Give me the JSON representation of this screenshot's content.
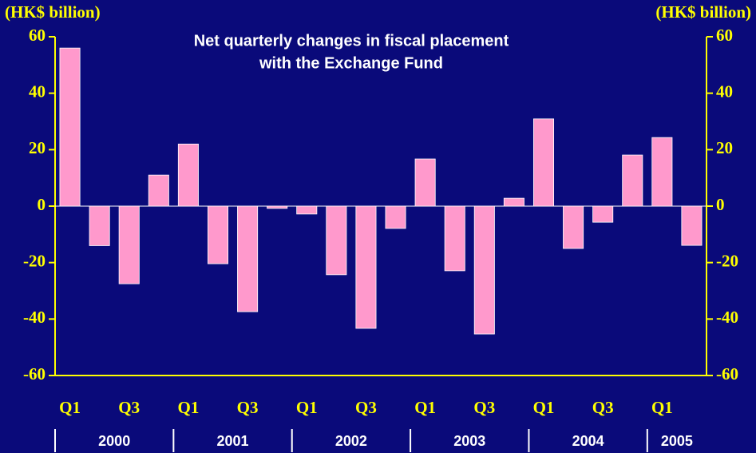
{
  "chart_data": {
    "type": "bar",
    "title": [
      "Net quarterly changes in fiscal placement",
      "with the Exchange Fund"
    ],
    "y_label": "(HK$ billion)",
    "y2_label": "(HK$ billion)",
    "categories": [
      "Q1",
      null,
      "Q3",
      null,
      "Q1",
      null,
      "Q3",
      null,
      "Q1",
      null,
      "Q3",
      null,
      "Q1",
      null,
      "Q3",
      null,
      "Q1",
      null,
      "Q3",
      null,
      "Q1",
      null
    ],
    "years": [
      "2000",
      "2001",
      "2002",
      "2003",
      "2004",
      "2005"
    ],
    "values": [
      56,
      -14,
      -27.5,
      11,
      22,
      -20.4,
      -37.4,
      -0.8,
      -2.8,
      -24.3,
      -43.3,
      -7.9,
      16.7,
      -22.9,
      -45.3,
      2.8,
      30.9,
      -15,
      -5.7,
      18.1,
      24.3,
      -13.9
    ],
    "color": "#ff99cc",
    "ylim": [
      -60,
      60
    ],
    "yticks": [
      -60,
      -40,
      -20,
      0,
      20,
      40,
      60
    ],
    "y2lim": [
      -60,
      60
    ],
    "y2ticks": [
      -60,
      -40,
      -20,
      0,
      20,
      40,
      60
    ],
    "grid": false
  }
}
